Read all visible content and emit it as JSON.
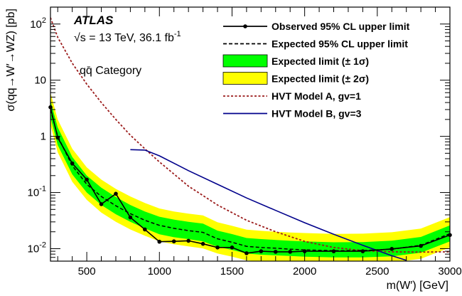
{
  "chart_data": {
    "type": "line",
    "experiment": "ATLAS",
    "energy_text": "√s = 13 TeV, 36.1 fb",
    "lumi_sup": "-1",
    "category_text": "qq̄ Category",
    "xlabel": "m(W′) [GeV]",
    "ylabel": "σ(qq→W′→WZ) [pb]",
    "xlim": [
      250,
      3000
    ],
    "ylim": [
      0.006,
      200
    ],
    "yscale": "log",
    "x_ticks": [
      500,
      1000,
      1500,
      2000,
      2500,
      3000
    ],
    "y_ticks": [
      {
        "value": 0.01,
        "base": "10",
        "exp": "-2"
      },
      {
        "value": 0.1,
        "base": "10",
        "exp": "-1"
      },
      {
        "value": 1,
        "base": "1",
        "exp": ""
      },
      {
        "value": 10,
        "base": "10",
        "exp": ""
      },
      {
        "value": 100,
        "base": "10",
        "exp": "2"
      }
    ],
    "legend": [
      {
        "key": "observed",
        "label": "Observed 95% CL upper limit",
        "style": "line-marker",
        "color": "#000000"
      },
      {
        "key": "expected",
        "label": "Expected 95% CL upper limit",
        "style": "dashed",
        "color": "#000000"
      },
      {
        "key": "band1",
        "label": "Expected limit (± 1σ)",
        "style": "box",
        "color": "#00ff00"
      },
      {
        "key": "band2",
        "label": "Expected limit (± 2σ)",
        "style": "box",
        "color": "#ffff00"
      },
      {
        "key": "hvtA",
        "label": "HVT Model A, gv=1",
        "style": "dotted",
        "color": "#9b1b1b"
      },
      {
        "key": "hvtB",
        "label": "HVT Model B, gv=3",
        "style": "solid",
        "color": "#00008b"
      }
    ],
    "series": [
      {
        "name": "Observed 95% CL upper limit",
        "x": [
          250,
          300,
          400,
          500,
          600,
          700,
          800,
          900,
          1000,
          1100,
          1200,
          1300,
          1400,
          1500,
          1600,
          1700,
          1800,
          1900,
          2000,
          2200,
          2400,
          2600,
          2800,
          3000
        ],
        "y": [
          3.3,
          0.95,
          0.33,
          0.17,
          0.062,
          0.095,
          0.036,
          0.022,
          0.0133,
          0.0135,
          0.0138,
          0.0122,
          0.0105,
          0.0105,
          0.0083,
          0.009,
          0.0088,
          0.0088,
          0.009,
          0.009,
          0.009,
          0.0099,
          0.0112,
          0.0175
        ]
      },
      {
        "name": "Expected 95% CL upper limit",
        "x": [
          250,
          300,
          400,
          500,
          600,
          700,
          800,
          900,
          1000,
          1100,
          1200,
          1300,
          1400,
          1500,
          1600,
          1700,
          1800,
          1900,
          2000,
          2200,
          2400,
          2600,
          2800,
          3000
        ],
        "y": [
          3.0,
          1.0,
          0.3,
          0.14,
          0.085,
          0.058,
          0.042,
          0.032,
          0.026,
          0.023,
          0.021,
          0.0195,
          0.015,
          0.013,
          0.011,
          0.0105,
          0.0102,
          0.0098,
          0.0095,
          0.0092,
          0.0093,
          0.0098,
          0.0115,
          0.0185
        ]
      },
      {
        "name": "HVT Model A, gv=1",
        "x": [
          250,
          300,
          400,
          500,
          600,
          700,
          800,
          900,
          1000,
          1200,
          1400,
          1600,
          1800,
          2000,
          2200,
          2400,
          2600,
          2800,
          3000
        ],
        "y": [
          130,
          58,
          20,
          8.5,
          4.0,
          2.0,
          1.05,
          0.6,
          0.35,
          0.13,
          0.06,
          0.032,
          0.02,
          0.0135,
          0.0105,
          0.0092,
          0.0088,
          0.0087,
          0.0088
        ]
      },
      {
        "name": "HVT Model B, gv=3",
        "x": [
          800,
          900,
          1000,
          1200,
          1400,
          1600,
          1800,
          2000,
          2200,
          2400,
          2600,
          2700
        ],
        "y": [
          0.58,
          0.57,
          0.45,
          0.245,
          0.14,
          0.08,
          0.048,
          0.029,
          0.018,
          0.0115,
          0.0075,
          0.0062
        ]
      }
    ],
    "band_1sigma": {
      "x": [
        250,
        300,
        400,
        500,
        600,
        700,
        800,
        900,
        1000,
        1100,
        1200,
        1300,
        1400,
        1500,
        1600,
        1700,
        1800,
        1900,
        2000,
        2200,
        2400,
        2600,
        2800,
        3000
      ],
      "low": [
        2.2,
        0.7,
        0.21,
        0.1,
        0.06,
        0.041,
        0.03,
        0.023,
        0.018,
        0.016,
        0.0148,
        0.0135,
        0.0108,
        0.0095,
        0.0082,
        0.0078,
        0.0076,
        0.0074,
        0.0072,
        0.007,
        0.007,
        0.0073,
        0.0085,
        0.0135
      ],
      "high": [
        4.3,
        1.45,
        0.43,
        0.2,
        0.122,
        0.083,
        0.06,
        0.046,
        0.037,
        0.033,
        0.03,
        0.028,
        0.021,
        0.0182,
        0.0155,
        0.0148,
        0.0143,
        0.0138,
        0.0135,
        0.013,
        0.0131,
        0.0139,
        0.0162,
        0.026
      ]
    },
    "band_2sigma": {
      "x": [
        250,
        300,
        400,
        500,
        600,
        700,
        800,
        900,
        1000,
        1100,
        1200,
        1300,
        1400,
        1500,
        1600,
        1700,
        1800,
        1900,
        2000,
        2200,
        2400,
        2600,
        2800,
        3000
      ],
      "low": [
        1.6,
        0.52,
        0.155,
        0.074,
        0.044,
        0.03,
        0.022,
        0.017,
        0.0135,
        0.012,
        0.011,
        0.0101,
        0.0082,
        0.0072,
        0.0062,
        0.0059,
        0.0058,
        0.0057,
        0.0056,
        0.0055,
        0.0055,
        0.0057,
        0.0066,
        0.0105
      ],
      "high": [
        6.0,
        2.0,
        0.6,
        0.28,
        0.17,
        0.116,
        0.085,
        0.065,
        0.052,
        0.046,
        0.042,
        0.039,
        0.0295,
        0.0255,
        0.0218,
        0.0208,
        0.02,
        0.0194,
        0.019,
        0.0183,
        0.0185,
        0.0196,
        0.0228,
        0.0365
      ]
    }
  }
}
